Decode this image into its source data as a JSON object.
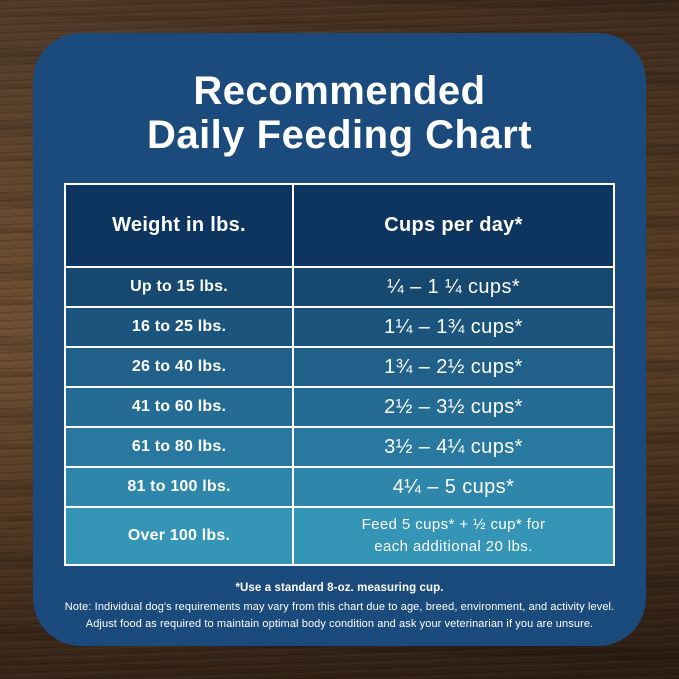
{
  "title": {
    "line1": "Recommended",
    "line2": "Daily Feeding Chart"
  },
  "table": {
    "headers": [
      "Weight in lbs.",
      "Cups per day*"
    ],
    "rows": [
      {
        "weight": "Up to 15 lbs.",
        "cups": "¼ – 1 ¼ cups*",
        "bg": "#17486F"
      },
      {
        "weight": "16 to 25 lbs.",
        "cups": "1¼ – 1¾  cups*",
        "bg": "#1B547D"
      },
      {
        "weight": "26 to 40 lbs.",
        "cups": "1¾ – 2½ cups*",
        "bg": "#206089"
      },
      {
        "weight": "41 to 60 lbs.",
        "cups": "2½ – 3½ cups*",
        "bg": "#246C94"
      },
      {
        "weight": "61 to 80 lbs.",
        "cups": "3½ – 4¼ cups*",
        "bg": "#29789F"
      },
      {
        "weight": "81 to 100 lbs.",
        "cups": "4¼ – 5 cups*",
        "bg": "#2E86AA"
      },
      {
        "weight": "Over 100 lbs.",
        "cups": "Feed 5 cups* + ½ cup* for\neach additional 20 lbs.",
        "bg": "#3595B6"
      }
    ]
  },
  "footnotes": {
    "line1": "*Use a standard 8-oz. measuring cup.",
    "line2": "Note: Individual dog's requirements may vary from this chart due to age, breed, environment, and activity level.",
    "line3": "Adjust food as required to maintain optimal body condition and ask your veterinarian if you are unsure."
  },
  "colors": {
    "card_bg": "#1B4A7C",
    "header_bg": "#0D3560",
    "table_border": "#FFFFFF",
    "text": "#FFFFFF",
    "wood_base": "#5C3F27"
  },
  "chart_data": {
    "type": "table",
    "title": "Recommended Daily Feeding Chart",
    "columns": [
      "Weight in lbs.",
      "Cups per day*"
    ],
    "rows": [
      [
        "Up to 15 lbs.",
        "¼ – 1 ¼ cups*"
      ],
      [
        "16 to 25 lbs.",
        "1¼ – 1¾ cups*"
      ],
      [
        "26 to 40 lbs.",
        "1¾ – 2½ cups*"
      ],
      [
        "41 to 60 lbs.",
        "2½ – 3½ cups*"
      ],
      [
        "61 to 80 lbs.",
        "3½ – 4¼ cups*"
      ],
      [
        "81 to 100 lbs.",
        "4¼ – 5 cups*"
      ],
      [
        "Over 100 lbs.",
        "Feed 5 cups* + ½ cup* for each additional 20 lbs."
      ]
    ],
    "footnotes": [
      "*Use a standard 8-oz. measuring cup.",
      "Note: Individual dog's requirements may vary from this chart due to age, breed, environment, and activity level.",
      "Adjust food as required to maintain optimal body condition and ask your veterinarian if you are unsure."
    ]
  }
}
